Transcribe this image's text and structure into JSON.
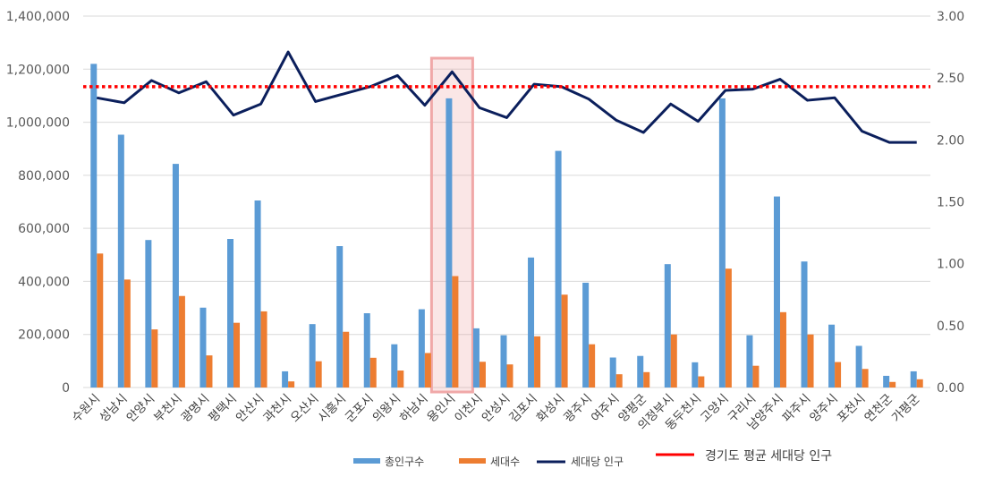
{
  "chart_data": {
    "type": "bar",
    "title": "",
    "categories": [
      "수원시",
      "성남시",
      "안양시",
      "부천시",
      "광명시",
      "평택시",
      "안산시",
      "과천시",
      "오산시",
      "시흥시",
      "군포시",
      "의왕시",
      "하남시",
      "용인시",
      "이천시",
      "안성시",
      "김포시",
      "화성시",
      "광주시",
      "여주시",
      "양평군",
      "의정부시",
      "동두천시",
      "고양시",
      "구리시",
      "남양주시",
      "파주시",
      "양주시",
      "포천시",
      "연천군",
      "가평군"
    ],
    "series": [
      {
        "name": "총인구수",
        "axis": "left",
        "kind": "bar",
        "color": "#5b9bd5",
        "values": [
          1220000,
          953000,
          556000,
          843000,
          301000,
          560000,
          705000,
          61000,
          239000,
          533000,
          280000,
          163000,
          295000,
          1090000,
          223000,
          197000,
          490000,
          892000,
          395000,
          113000,
          119000,
          465000,
          95000,
          1090000,
          197000,
          720000,
          475000,
          237000,
          157000,
          44000,
          61000
        ]
      },
      {
        "name": "세대수",
        "axis": "left",
        "kind": "bar",
        "color": "#ed7d31",
        "values": [
          505000,
          407000,
          219000,
          345000,
          121000,
          244000,
          287000,
          23000,
          99000,
          210000,
          112000,
          64000,
          130000,
          420000,
          97000,
          87000,
          193000,
          350000,
          163000,
          50000,
          58000,
          200000,
          42000,
          448000,
          82000,
          284000,
          200000,
          96000,
          70000,
          21000,
          31000
        ]
      },
      {
        "name": "세대당 인구",
        "axis": "right",
        "kind": "line",
        "color": "#0b1f5c",
        "values": [
          2.34,
          2.3,
          2.48,
          2.38,
          2.47,
          2.2,
          2.29,
          2.71,
          2.31,
          2.37,
          2.43,
          2.52,
          2.28,
          2.55,
          2.26,
          2.18,
          2.45,
          2.43,
          2.33,
          2.16,
          2.06,
          2.29,
          2.15,
          2.4,
          2.41,
          2.49,
          2.32,
          2.34,
          2.07,
          1.98,
          1.98
        ]
      }
    ],
    "reference_line": {
      "name": "경기도 평균 세대당 인구",
      "axis": "right",
      "value": 2.43,
      "color": "#ff0000"
    },
    "highlight_category": "용인시",
    "y_left": {
      "min": 0,
      "max": 1400000,
      "step": 200000,
      "tick_labels": [
        "0",
        "200,000",
        "400,000",
        "600,000",
        "800,000",
        "1,000,000",
        "1,200,000",
        "1,400,000"
      ]
    },
    "y_right": {
      "min": 0,
      "max": 3.0,
      "step": 0.5,
      "tick_labels": [
        "0.00",
        "0.50",
        "1.00",
        "1.50",
        "2.00",
        "2.50",
        "3.00"
      ]
    },
    "grid": true,
    "legend": {
      "position": "bottom",
      "labels": [
        "총인구수",
        "세대수",
        "세대당 인구",
        "경기도 평균 세대당 인구"
      ]
    },
    "xlabel": "",
    "ylabel": ""
  }
}
